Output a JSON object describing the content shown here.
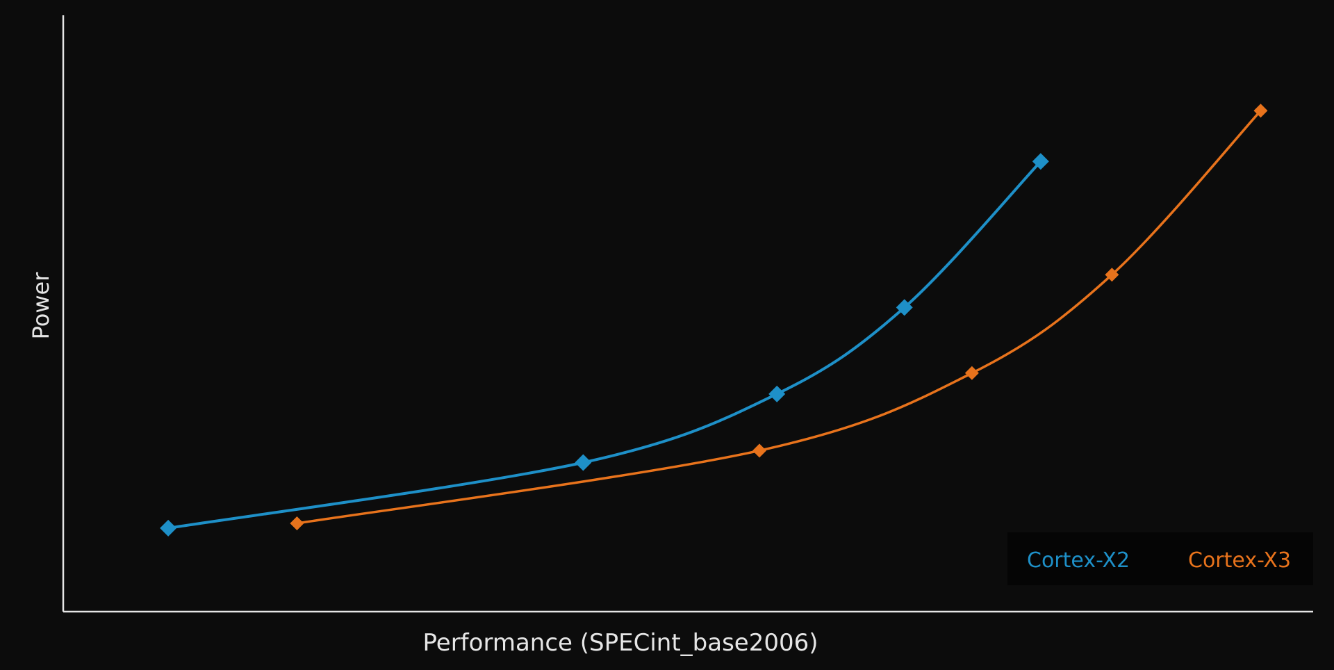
{
  "chart_data": {
    "type": "line",
    "title": "",
    "xlabel": "Performance (SPECint_base2006)",
    "ylabel": "Power",
    "xlim": [
      0,
      100
    ],
    "ylim": [
      0,
      100
    ],
    "grid": false,
    "ticks_labeled": false,
    "legend_position": "bottom-right",
    "series": [
      {
        "name": "Cortex-X2",
        "color": "#1e90c8",
        "marker": "diamond",
        "points": [
          {
            "x": 8.4,
            "y": 14.0
          },
          {
            "x": 41.6,
            "y": 25.0
          },
          {
            "x": 57.1,
            "y": 36.5
          },
          {
            "x": 67.3,
            "y": 51.0
          },
          {
            "x": 78.2,
            "y": 75.5
          }
        ]
      },
      {
        "name": "Cortex-X3",
        "color": "#e8731c",
        "marker": "diamond",
        "points": [
          {
            "x": 18.7,
            "y": 14.8
          },
          {
            "x": 55.7,
            "y": 27.0
          },
          {
            "x": 72.7,
            "y": 40.0
          },
          {
            "x": 83.9,
            "y": 56.5
          },
          {
            "x": 95.8,
            "y": 84.0
          }
        ]
      }
    ]
  }
}
